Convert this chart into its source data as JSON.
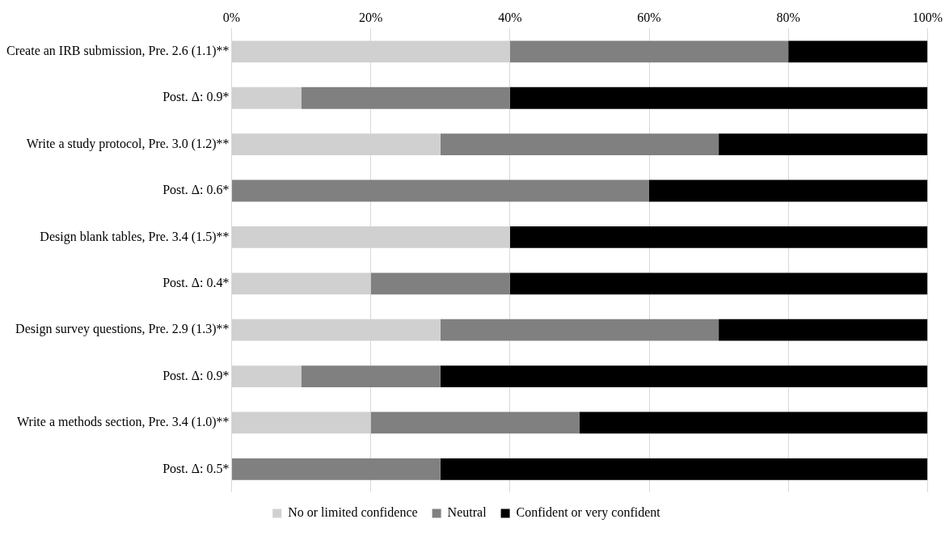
{
  "chart_data": {
    "type": "bar",
    "orientation": "horizontal",
    "stacked": true,
    "categories": [
      "Create an IRB submission, Pre. 2.6 (1.1)**",
      "Post. Δ: 0.9*",
      "Write a study protocol, Pre. 3.0 (1.2)**",
      "Post. Δ: 0.6*",
      "Design blank tables, Pre. 3.4 (1.5)**",
      "Post. Δ: 0.4*",
      "Design survey questions, Pre. 2.9 (1.3)**",
      "Post. Δ: 0.9*",
      "Write a methods section, Pre. 3.4 (1.0)**",
      "Post. Δ: 0.5*"
    ],
    "series": [
      {
        "name": "No or limited confidence",
        "color": "#d0d0d0",
        "values": [
          40,
          10,
          30,
          0,
          40,
          20,
          30,
          10,
          20,
          0
        ]
      },
      {
        "name": "Neutral",
        "color": "#808080",
        "values": [
          40,
          30,
          40,
          60,
          0,
          20,
          40,
          20,
          30,
          30
        ]
      },
      {
        "name": "Confident or very confident",
        "color": "#000000",
        "values": [
          20,
          60,
          30,
          40,
          60,
          60,
          30,
          70,
          50,
          70
        ]
      }
    ],
    "xlim": [
      0,
      100
    ],
    "xticks": [
      {
        "value": 0,
        "label": "0%"
      },
      {
        "value": 20,
        "label": "20%"
      },
      {
        "value": 40,
        "label": "40%"
      },
      {
        "value": 60,
        "label": "60%"
      },
      {
        "value": 80,
        "label": "80%"
      },
      {
        "value": 100,
        "label": "100%"
      }
    ],
    "grid": "x",
    "legend": "bottom"
  }
}
